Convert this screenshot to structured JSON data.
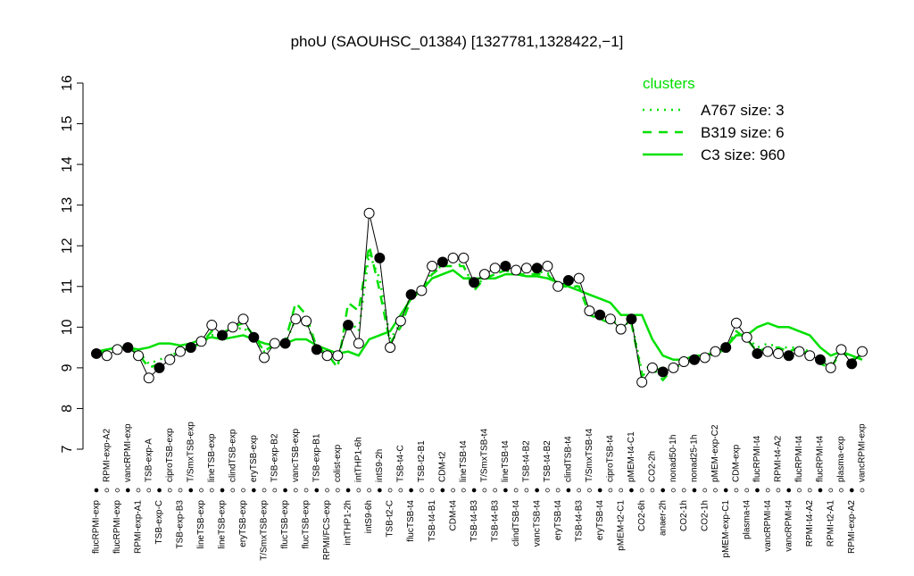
{
  "chart_data": {
    "type": "line",
    "title": "phoU (SAOUHSC_01384) [1327781,1328422,−1]",
    "legend_title": "clusters",
    "legend": "top-right",
    "ylim": [
      7,
      16
    ],
    "yticks": [
      7,
      8,
      9,
      10,
      11,
      12,
      13,
      14,
      15,
      16
    ],
    "color": "#000000",
    "categories": [
      "flucRPMI-exp",
      "RPMI-exp-A2",
      "flucRPMI-exp",
      "vancRPMI-exp",
      "RPMI-exp-A1",
      "TSB-exp-A",
      "TSB-exp-C",
      "ciproTSB-exp",
      "TSB-exp-B3",
      "T/SmxTSB-exp",
      "lineTSB-exp",
      "lineTSB-exp",
      "lineTSB-exp",
      "clindTSB-exp",
      "eryTSB-exp",
      "eryTSB-exp",
      "T/SmxTSB-exp",
      "TSB-exp-B2",
      "flucTSB-exp",
      "vancTSB-exp",
      "flucTSB-exp",
      "TSB-exp-B1",
      "RPMI/FCS-exp",
      "colist-exp",
      "intTHP1-2h",
      "intTHP1-6h",
      "intS9-6h",
      "intS9-2h",
      "TSB-t2-C",
      "TSB-t4-C",
      "flucTSB-t4",
      "TSB-t2-B1",
      "TSB-t4-B1",
      "CDM-t2",
      "CDM-t4",
      "lineTSB-t4",
      "TSB-t4-B3",
      "T/SmxTSB-t4",
      "TSB-t4-B3",
      "lineTSB-t4",
      "clindTSB-t4",
      "TSB-t4-B2",
      "vancTSB-t4",
      "TSB-t4-B2",
      "eryTSB-t4",
      "clindTSB-t4",
      "TSB-t4-B3",
      "T/SmxTSB-t4",
      "eryTSB-t4",
      "ciproTSB-t4",
      "pMEM-t2-C1",
      "pMEM-t4-C1",
      "CO2-6h",
      "CO2-2h",
      "anaer-2h",
      "nonad50-1h",
      "CO2-1h",
      "nonad25-1h",
      "CO2-1h",
      "pMEM-exp-C2",
      "pMEM-exp-C1",
      "CDM-exp",
      "plasma-t4",
      "flucRPMI-t4",
      "vancRPMI-t4",
      "RPMI-t4-A2",
      "vancRPMI-t4",
      "flucRPMI-t4",
      "RPMI-t4-A2",
      "flucRPMI-t4",
      "RPMI-t2-A1",
      "plasma-exp",
      "RPMI-exp-A2",
      "vancRPMI-exp"
    ],
    "values": [
      9.35,
      9.3,
      9.45,
      9.5,
      9.3,
      8.75,
      9.0,
      9.2,
      9.4,
      9.5,
      9.65,
      10.05,
      9.8,
      10.0,
      10.2,
      9.75,
      9.25,
      9.6,
      9.6,
      10.2,
      10.15,
      9.45,
      9.3,
      9.3,
      10.05,
      9.6,
      12.8,
      11.7,
      9.5,
      10.15,
      10.8,
      10.9,
      11.5,
      11.6,
      11.7,
      11.7,
      11.1,
      11.3,
      11.45,
      11.5,
      11.4,
      11.45,
      11.45,
      11.5,
      11.0,
      11.15,
      11.2,
      10.4,
      10.3,
      10.2,
      9.95,
      10.2,
      8.65,
      9.0,
      8.9,
      9.0,
      9.15,
      9.2,
      9.25,
      9.4,
      9.5,
      10.1,
      9.75,
      9.35,
      9.4,
      9.35,
      9.3,
      9.4,
      9.3,
      9.2,
      9.0,
      9.45,
      9.1,
      9.4
    ],
    "series": [
      {
        "name": "A767 size: 3",
        "color": "#00e000",
        "dash": "dotted",
        "values": [
          9.4,
          9.45,
          9.5,
          9.5,
          9.4,
          9.1,
          9.2,
          9.3,
          9.4,
          9.5,
          9.6,
          9.8,
          9.8,
          9.9,
          10.0,
          9.7,
          9.4,
          9.55,
          9.6,
          10.2,
          10.1,
          9.5,
          9.4,
          9.2,
          10.2,
          9.9,
          11.8,
          11.2,
          9.7,
          10.1,
          10.8,
          10.9,
          11.4,
          11.5,
          11.6,
          11.5,
          11.0,
          11.2,
          11.3,
          11.4,
          11.3,
          11.35,
          11.35,
          11.35,
          11.0,
          11.05,
          11.0,
          10.4,
          10.3,
          10.2,
          10.0,
          10.15,
          8.9,
          9.1,
          8.9,
          9.0,
          9.1,
          9.2,
          9.2,
          9.4,
          9.5,
          9.9,
          9.75,
          9.5,
          9.6,
          9.5,
          9.5,
          9.5,
          9.4,
          9.2,
          9.1,
          9.4,
          9.2,
          9.3
        ]
      },
      {
        "name": "B319 size: 6",
        "color": "#00e000",
        "dash": "dashed",
        "values": [
          9.35,
          9.4,
          9.45,
          9.5,
          9.35,
          9.0,
          9.1,
          9.3,
          9.4,
          9.5,
          9.6,
          9.9,
          9.85,
          10.0,
          10.1,
          9.8,
          9.4,
          9.6,
          9.65,
          10.6,
          10.3,
          9.5,
          9.35,
          9.0,
          10.6,
          10.4,
          12.0,
          10.9,
          9.6,
          10.0,
          10.7,
          10.9,
          11.3,
          11.5,
          11.5,
          11.5,
          10.9,
          11.2,
          11.3,
          11.4,
          11.3,
          11.3,
          11.3,
          11.3,
          11.0,
          11.0,
          11.0,
          10.3,
          10.2,
          10.1,
          10.0,
          10.1,
          8.8,
          9.0,
          8.7,
          9.0,
          9.1,
          9.2,
          9.2,
          9.35,
          9.45,
          9.9,
          9.7,
          9.4,
          9.5,
          9.5,
          9.4,
          9.5,
          9.3,
          9.1,
          9.0,
          9.4,
          9.2,
          9.3
        ]
      },
      {
        "name": "C3 size: 960",
        "color": "#00e000",
        "dash": "solid",
        "values": [
          9.4,
          9.45,
          9.5,
          9.5,
          9.45,
          9.5,
          9.6,
          9.6,
          9.55,
          9.6,
          9.7,
          9.75,
          9.7,
          9.75,
          9.8,
          9.7,
          9.6,
          9.55,
          9.6,
          9.7,
          9.7,
          9.55,
          9.45,
          9.35,
          9.4,
          9.3,
          9.7,
          9.8,
          9.9,
          10.3,
          10.7,
          10.9,
          11.2,
          11.3,
          11.4,
          11.2,
          11.2,
          11.2,
          11.2,
          11.3,
          11.3,
          11.25,
          11.25,
          11.2,
          11.1,
          11.0,
          10.9,
          10.8,
          10.7,
          10.6,
          10.3,
          10.3,
          10.3,
          9.7,
          9.3,
          9.2,
          9.2,
          9.3,
          9.3,
          9.4,
          9.5,
          9.8,
          9.8,
          10.0,
          10.1,
          10.0,
          10.0,
          9.9,
          9.8,
          9.5,
          9.3,
          9.4,
          9.3,
          9.2
        ]
      }
    ]
  }
}
